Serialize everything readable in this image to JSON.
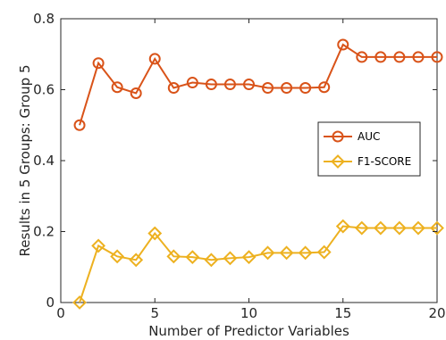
{
  "chart_data": {
    "type": "line",
    "title": "",
    "xlabel": "Number of Predictor Variables",
    "ylabel": "Results in 5 Groups: Group 5",
    "xlim": [
      0,
      20
    ],
    "ylim": [
      0,
      0.8
    ],
    "x_ticks": [
      0,
      5,
      10,
      15,
      20
    ],
    "y_ticks": [
      0,
      0.2,
      0.4,
      0.6,
      0.8
    ],
    "x_tick_labels": [
      "0",
      "5",
      "10",
      "15",
      "20"
    ],
    "y_tick_labels": [
      "0",
      "0.2",
      "0.4",
      "0.6",
      "0.8"
    ],
    "grid": false,
    "legend_position": "right",
    "x": [
      1,
      2,
      3,
      4,
      5,
      6,
      7,
      8,
      9,
      10,
      11,
      12,
      13,
      14,
      15,
      16,
      17,
      18,
      19,
      20
    ],
    "series": [
      {
        "name": "AUC",
        "color": "#d95319",
        "marker": "circle",
        "values": [
          0.5,
          0.675,
          0.607,
          0.59,
          0.687,
          0.605,
          0.62,
          0.615,
          0.615,
          0.615,
          0.605,
          0.605,
          0.605,
          0.607,
          0.727,
          0.692,
          0.692,
          0.692,
          0.692,
          0.692
        ]
      },
      {
        "name": "F1-SCORE",
        "color": "#edb120",
        "marker": "diamond",
        "values": [
          0.0,
          0.16,
          0.13,
          0.12,
          0.195,
          0.13,
          0.128,
          0.12,
          0.125,
          0.128,
          0.14,
          0.14,
          0.14,
          0.142,
          0.215,
          0.21,
          0.21,
          0.21,
          0.21,
          0.21
        ]
      }
    ]
  }
}
